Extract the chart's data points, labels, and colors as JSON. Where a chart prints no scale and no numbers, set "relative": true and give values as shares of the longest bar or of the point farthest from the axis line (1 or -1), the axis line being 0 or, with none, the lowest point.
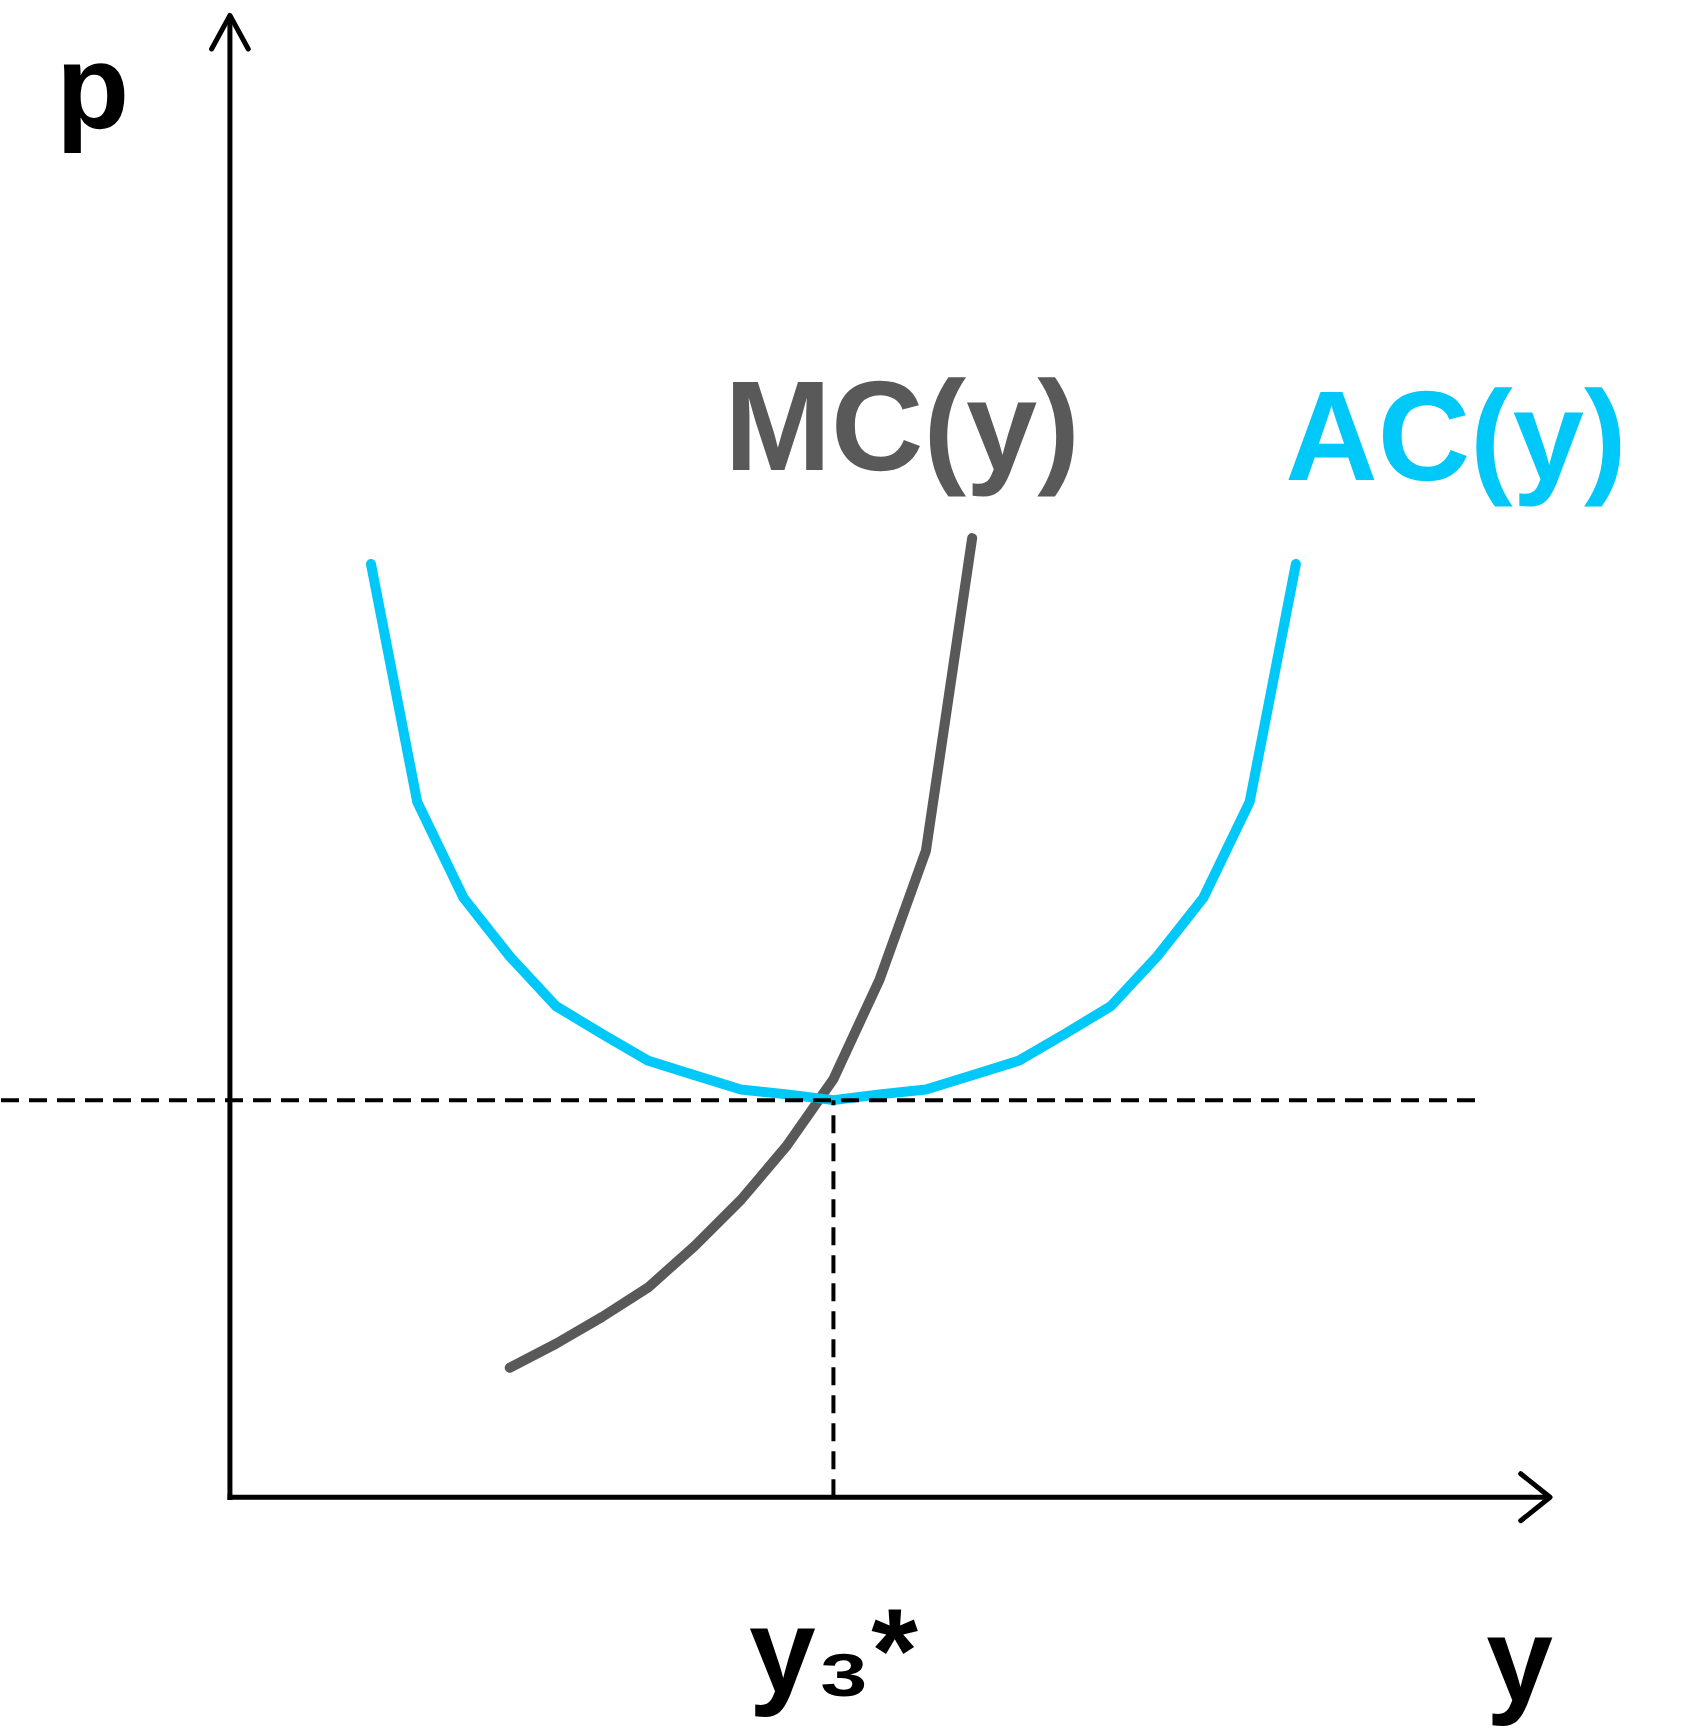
{
  "chart_data": {
    "type": "line",
    "relative": true,
    "xlabel": "y",
    "ylabel": "p",
    "line_style": "solid",
    "categories": [
      null,
      null,
      null,
      null,
      null,
      null,
      null,
      null,
      null,
      null,
      null,
      null,
      null,
      null,
      null,
      null,
      null,
      null,
      null,
      null,
      null,
      null,
      null,
      null,
      null,
      null,
      null,
      null,
      null,
      null,
      null,
      null,
      null
    ],
    "annotations": [
      "y₃*"
    ],
    "series": [
      {
        "name": "MC(y)",
        "color": "#595959",
        "values": [
          null,
          null,
          null,
          null,
          null,
          null,
          null,
          null,
          null,
          null,
          null,
          0.135,
          0.16,
          0.188,
          0.219,
          0.262,
          0.31,
          0.367,
          0.436,
          0.54,
          0.674,
          1.0,
          null,
          null,
          null,
          null,
          null,
          null,
          null,
          null,
          null,
          null,
          null
        ]
      },
      {
        "name": "AC(y)",
        "color": "#00c8f8",
        "values": [
          null,
          null,
          null,
          null,
          null,
          null,
          null,
          null,
          0.973,
          0.725,
          0.625,
          0.564,
          0.512,
          0.483,
          0.455,
          0.44,
          0.425,
          0.42,
          0.414,
          0.42,
          0.425,
          0.44,
          0.455,
          0.483,
          0.512,
          0.564,
          0.625,
          0.725,
          0.973,
          null,
          null,
          null,
          null
        ]
      },
      {
        "color": "#000000",
        "line_style": "dashed",
        "values": [
          0.414,
          0.414,
          0.414,
          0.414,
          0.414,
          0.414,
          0.414,
          0.414,
          0.414,
          0.414,
          0.414,
          0.414,
          0.414,
          0.414,
          0.414,
          0.414,
          0.414,
          0.414,
          0.414,
          0.414,
          0.414,
          0.414,
          0.414,
          0.414,
          0.414,
          0.414,
          0.414,
          0.414,
          0.414,
          0.414,
          0.414,
          0.414,
          0.414
        ]
      }
    ]
  }
}
